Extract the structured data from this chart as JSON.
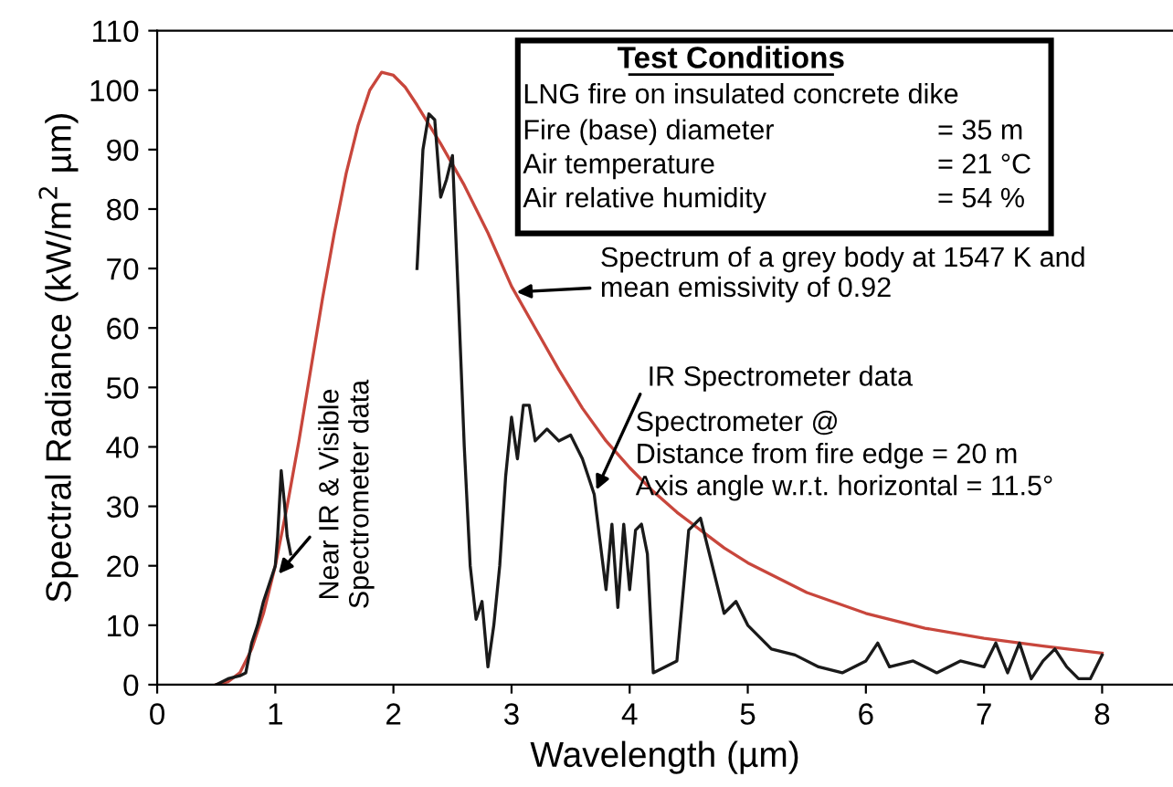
{
  "chart_data": {
    "type": "line",
    "xlabel": "Wavelength (µm)",
    "ylabel": "Spectral Radiance (kW/m$^{2}$ µm)",
    "xlim": [
      0,
      8.6
    ],
    "ylim": [
      0,
      110
    ],
    "xticks": [
      0,
      1,
      2,
      3,
      4,
      5,
      6,
      7,
      8
    ],
    "yticks": [
      0,
      10,
      20,
      30,
      40,
      50,
      60,
      70,
      80,
      90,
      100,
      110
    ],
    "grid": false,
    "legend": false,
    "marker": "none",
    "line_style": "solid",
    "series": [
      {
        "color": "#c8463c",
        "x": [
          0.5,
          0.6,
          0.7,
          0.8,
          0.9,
          1.0,
          1.1,
          1.2,
          1.3,
          1.4,
          1.5,
          1.6,
          1.7,
          1.8,
          1.9,
          2.0,
          2.1,
          2.2,
          2.4,
          2.6,
          2.8,
          3.0,
          3.2,
          3.4,
          3.6,
          3.8,
          4.0,
          4.2,
          4.4,
          4.6,
          4.8,
          5.0,
          5.5,
          6.0,
          6.5,
          7.0,
          7.5,
          8.0
        ],
        "values": [
          0,
          0.5,
          2,
          6,
          12,
          20,
          30,
          41,
          53,
          65,
          76,
          86,
          94,
          100,
          103,
          102.5,
          100.5,
          97.5,
          91,
          84,
          76,
          67,
          60,
          53,
          46.5,
          41,
          36.5,
          32.5,
          29,
          26,
          23,
          20.5,
          15.5,
          12,
          9.5,
          7.8,
          6.5,
          5.3
        ]
      },
      {
        "color": "#1a1a1a",
        "x": [
          0.5,
          0.6,
          0.7,
          0.75,
          0.8,
          0.85,
          0.9,
          0.95,
          1.0,
          1.02,
          1.05,
          1.08,
          1.1,
          1.13,
          1.6,
          2.2,
          2.25,
          2.3,
          2.35,
          2.4,
          2.45,
          2.5,
          2.55,
          2.6,
          2.65,
          2.7,
          2.75,
          2.8,
          2.85,
          2.9,
          2.95,
          3.0,
          3.05,
          3.1,
          3.15,
          3.2,
          3.3,
          3.4,
          3.5,
          3.6,
          3.7,
          3.75,
          3.8,
          3.85,
          3.9,
          3.95,
          4.0,
          4.05,
          4.1,
          4.15,
          4.2,
          4.3,
          4.4,
          4.5,
          4.6,
          4.7,
          4.8,
          4.9,
          5.0,
          5.1,
          5.2,
          5.4,
          5.6,
          5.8,
          6.0,
          6.1,
          6.2,
          6.4,
          6.6,
          6.8,
          7.0,
          7.1,
          7.2,
          7.3,
          7.4,
          7.5,
          7.6,
          7.7,
          7.8,
          7.9,
          8.0
        ],
        "values": [
          0,
          1,
          1.5,
          2,
          7,
          10,
          14,
          17,
          20,
          25,
          36,
          30,
          25,
          22,
          null,
          70,
          90,
          96,
          95,
          82,
          85,
          89,
          65,
          40,
          20,
          11,
          14,
          3,
          10,
          20,
          35,
          45,
          38,
          47,
          47,
          41,
          43,
          41,
          42,
          38,
          32,
          24,
          16,
          27,
          13,
          27,
          16,
          26,
          27,
          22,
          2,
          3,
          4,
          26,
          28,
          20,
          12,
          14,
          10,
          8,
          6,
          5,
          3,
          2,
          4,
          7,
          3,
          4,
          2,
          4,
          3,
          7,
          2,
          7,
          1,
          4,
          6,
          3,
          1,
          1,
          5
        ]
      }
    ],
    "annotations": [
      "Test Conditions",
      "LNG fire on insulated concrete dike",
      "Fire (base) diameter",
      "= 35 m",
      "Air temperature",
      "= 21 °C",
      "Air relative humidity",
      "= 54 %",
      {
        "text": "Spectrum of a grey body at 1547 K and\nmean emissivity of 0.92",
        "x": 3.0,
        "y": 66
      },
      {
        "text": "IR Spectrometer data",
        "x": 3.7,
        "y": 32
      },
      "Spectrometer @\nDistance from fire edge = 20 m\nAxis angle w.r.t. horizontal = 11.5°",
      {
        "text": "Near IR & Visible\nSpectrometer data",
        "x": 1.0,
        "y": 18
      }
    ]
  }
}
